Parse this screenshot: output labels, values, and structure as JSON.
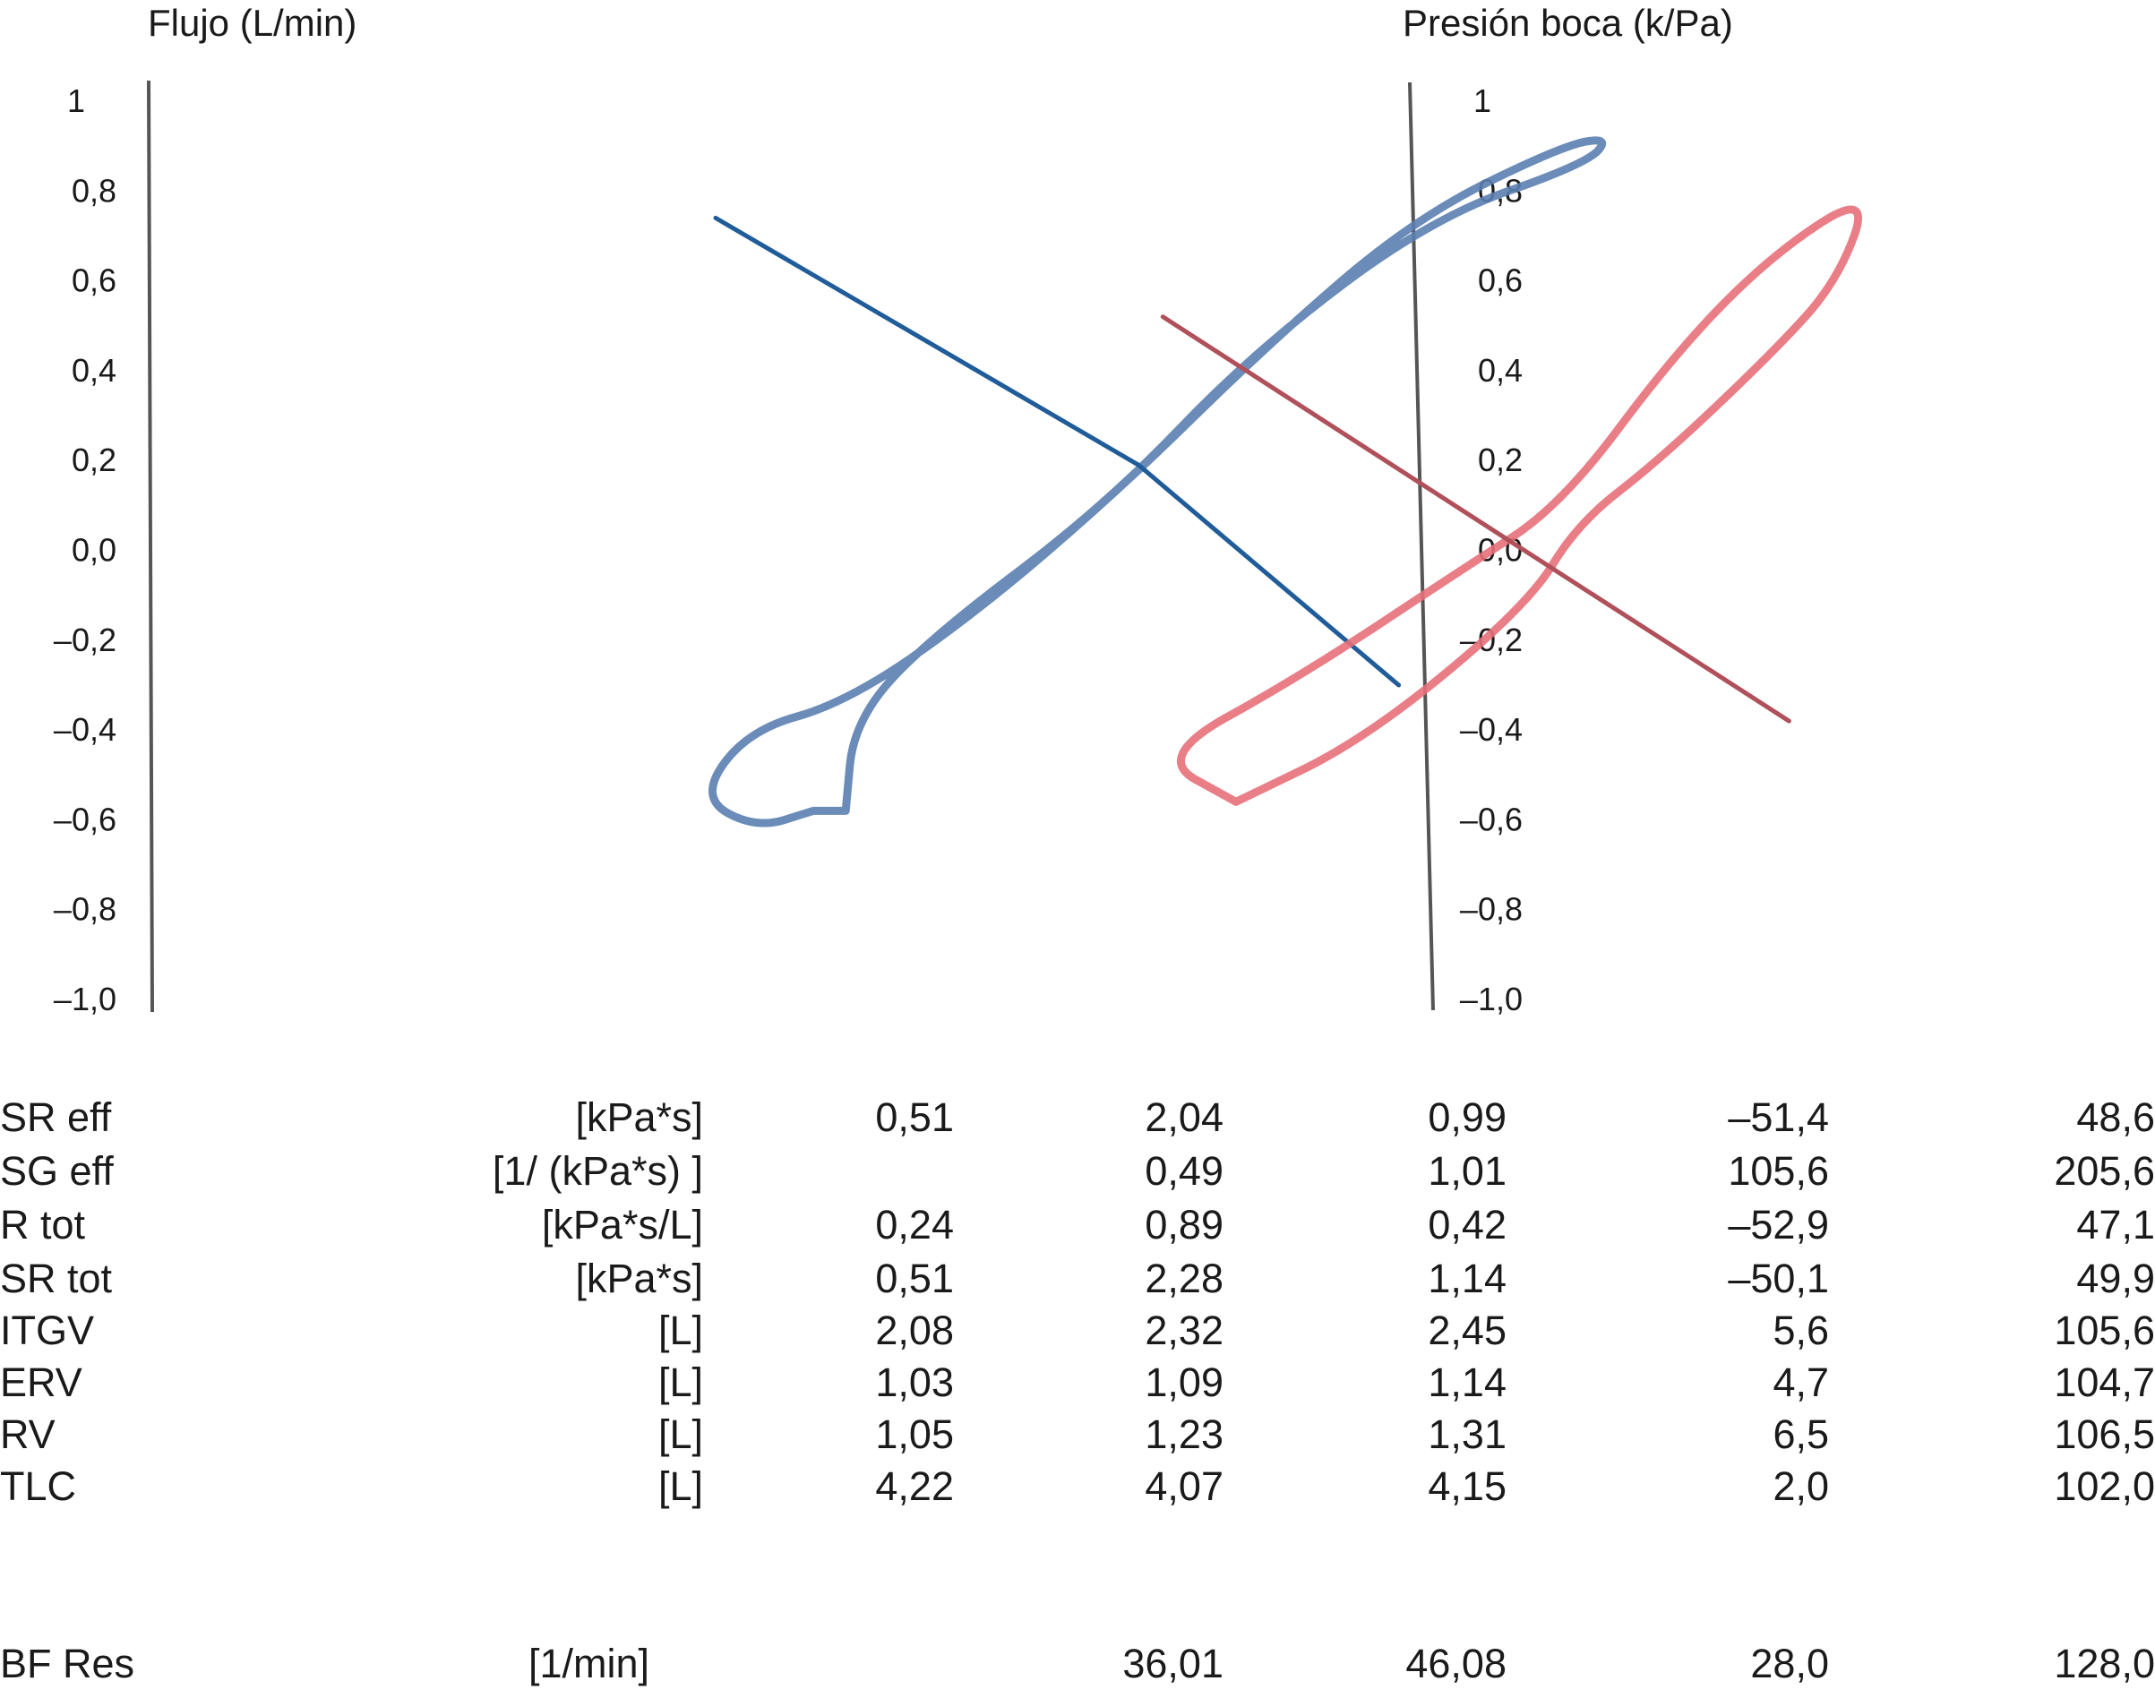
{
  "chart_data": {
    "type": "line",
    "left_axis": {
      "title": "Flujo (L/min)",
      "ticks": [
        "1",
        "0,8",
        "0,6",
        "0,4",
        "0,2",
        "0,0",
        "–0,2",
        "–0,4",
        "–0,6",
        "–0,8",
        "–1,0"
      ],
      "range": [
        -1.0,
        1.0
      ]
    },
    "right_axis": {
      "title": "Presión boca (k/Pa)",
      "ticks": [
        "1",
        "0,8",
        "0,6",
        "0,4",
        "0,2",
        "0,0",
        "–0,2",
        "–0,4",
        "–0,6",
        "–0,8",
        "–1,0"
      ],
      "range": [
        -1.0,
        1.0
      ]
    },
    "colors": {
      "series_1": "#5b7fb0",
      "series_1_dark": "#1f5c99",
      "series_2": "#e8707a",
      "series_2_dark": "#b0505a"
    },
    "series": [
      {
        "loop": [
          [
            1.0,
            -0.58
          ],
          [
            0.93,
            -0.62
          ],
          [
            0.86,
            -0.55
          ],
          [
            0.92,
            -0.4
          ],
          [
            1.04,
            -0.34
          ],
          [
            1.2,
            -0.14
          ],
          [
            1.38,
            0.14
          ],
          [
            1.56,
            0.46
          ],
          [
            1.74,
            0.74
          ],
          [
            1.92,
            0.9
          ],
          [
            1.98,
            0.92
          ],
          [
            1.95,
            0.86
          ],
          [
            1.76,
            0.74
          ],
          [
            1.54,
            0.44
          ],
          [
            1.36,
            0.1
          ],
          [
            1.14,
            -0.2
          ],
          [
            1.05,
            -0.38
          ],
          [
            1.04,
            -0.58
          ]
        ],
        "line": [
          [
            0.88,
            0.74
          ],
          [
            1.4,
            0.19
          ],
          [
            1.72,
            -0.3
          ]
        ]
      },
      {
        "loop": [
          [
            1.52,
            -0.56
          ],
          [
            1.42,
            -0.46
          ],
          [
            1.6,
            -0.28
          ],
          [
            1.8,
            -0.04
          ],
          [
            1.92,
            0.1
          ],
          [
            2.06,
            0.44
          ],
          [
            2.18,
            0.66
          ],
          [
            2.3,
            0.8
          ],
          [
            2.26,
            0.6
          ],
          [
            2.18,
            0.44
          ],
          [
            2.04,
            0.2
          ],
          [
            1.94,
            0.06
          ],
          [
            1.88,
            -0.12
          ],
          [
            1.68,
            -0.42
          ],
          [
            1.52,
            -0.56
          ]
        ],
        "line": [
          [
            1.43,
            0.52
          ],
          [
            1.84,
            0.04
          ],
          [
            2.2,
            -0.38
          ]
        ]
      }
    ],
    "x_range": [
      0,
      2.65
    ],
    "grid": false,
    "legend": "none"
  },
  "table": {
    "rows": [
      {
        "label": "SR eff",
        "unit": "[kPa*s]",
        "v1": "0,51",
        "v2": "2,04",
        "v3": "0,99",
        "v4": "–51,4",
        "v5": "48,6"
      },
      {
        "label": "SG eff",
        "unit": "[1/ (kPa*s) ]",
        "v1": "",
        "v2": "0,49",
        "v3": "1,01",
        "v4": "105,6",
        "v5": "205,6"
      },
      {
        "label": "R tot",
        "unit": "[kPa*s/L]",
        "v1": "0,24",
        "v2": "0,89",
        "v3": "0,42",
        "v4": "–52,9",
        "v5": "47,1"
      },
      {
        "label": "SR tot",
        "unit": "[kPa*s]",
        "v1": "0,51",
        "v2": "2,28",
        "v3": "1,14",
        "v4": "–50,1",
        "v5": "49,9"
      },
      {
        "label": "ITGV",
        "unit": "[L]",
        "v1": "2,08",
        "v2": "2,32",
        "v3": "2,45",
        "v4": "5,6",
        "v5": "105,6"
      },
      {
        "label": "ERV",
        "unit": "[L]",
        "v1": "1,03",
        "v2": "1,09",
        "v3": "1,14",
        "v4": "4,7",
        "v5": "104,7"
      },
      {
        "label": "RV",
        "unit": "[L]",
        "v1": "1,05",
        "v2": "1,23",
        "v3": "1,31",
        "v4": "6,5",
        "v5": "106,5"
      },
      {
        "label": "TLC",
        "unit": "[L]",
        "v1": "4,22",
        "v2": "4,07",
        "v3": "4,15",
        "v4": "2,0",
        "v5": "102,0"
      }
    ],
    "bf_row": {
      "label": "BF Res",
      "unit": "[1/min]",
      "v1": "",
      "v2": "36,01",
      "v3": "46,08",
      "v4": "28,0",
      "v5": "128,0"
    }
  }
}
